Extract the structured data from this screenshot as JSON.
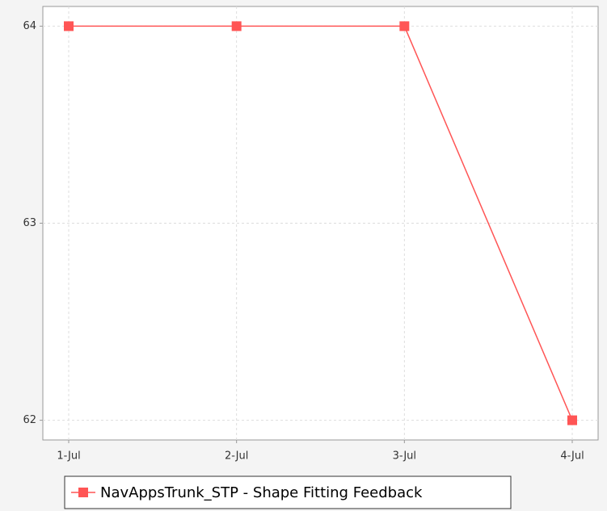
{
  "chart_data": {
    "type": "line",
    "categories": [
      "1-Jul",
      "2-Jul",
      "3-Jul",
      "4-Jul"
    ],
    "series": [
      {
        "name": "NavAppsTrunk_STP - Shape Fitting Feedback",
        "color": "#ff5555",
        "values": [
          64,
          64,
          64,
          62
        ]
      }
    ],
    "ylim": [
      61.9,
      64.1
    ],
    "yticks": [
      62,
      63,
      64
    ],
    "grid": true,
    "legend": "bottom"
  }
}
